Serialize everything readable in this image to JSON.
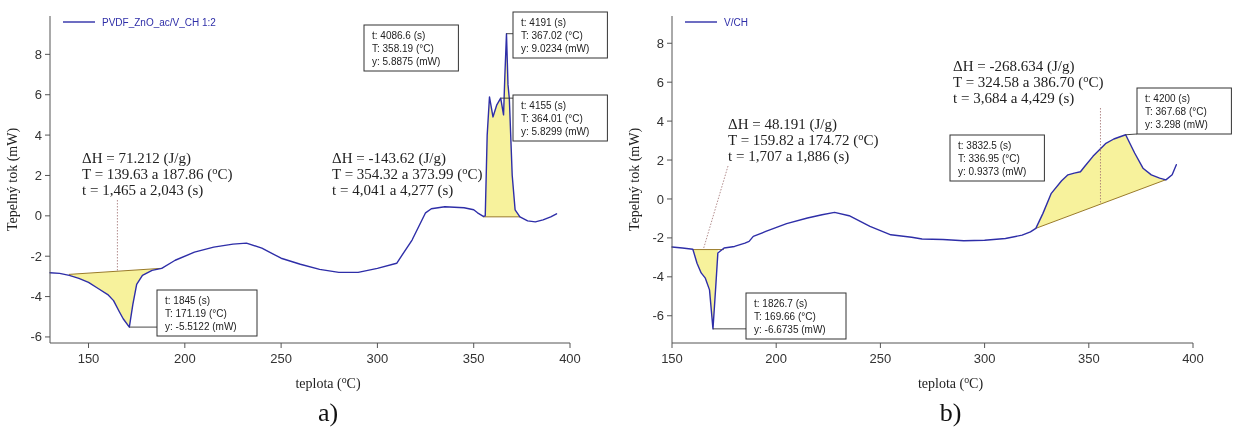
{
  "chart_data": [
    {
      "type": "line",
      "title": "a)",
      "xlabel": "teplota ($^{o}$C)",
      "ylabel": "Tepelný tok (mW)",
      "xlim": [
        130,
        400
      ],
      "xticks": [
        150,
        200,
        250,
        300,
        350,
        400
      ],
      "ylim": [
        -6.3,
        9.9
      ],
      "yticks": [
        -6,
        -4,
        -2,
        0,
        2,
        4,
        6,
        8
      ],
      "legend": "top left",
      "series": [
        {
          "color": "#9a7b2a",
          "x": [
            140,
            188
          ],
          "values": [
            -2.9,
            -2.6
          ]
        },
        {
          "color": "#9a7b2a",
          "x": [
            355,
            374
          ],
          "values": [
            -0.05,
            -0.05
          ]
        },
        {
          "name": "PVDF_ZnO_ac/V_CH 1:2",
          "color": "#2e2ea8",
          "x": [
            130,
            135,
            140,
            145,
            150,
            155,
            160,
            163,
            166,
            168,
            171.19,
            173,
            175,
            178,
            183,
            188,
            195,
            205,
            215,
            225,
            232,
            240,
            250,
            260,
            270,
            280,
            290,
            300,
            310,
            318,
            325,
            328,
            335,
            345,
            350,
            352,
            355,
            356,
            357,
            358.19,
            360,
            362,
            364.01,
            365.5,
            366.2,
            367.02,
            367.8,
            368.5,
            370,
            371.5,
            374,
            378,
            382,
            386,
            390,
            393
          ],
          "values": [
            -2.82,
            -2.85,
            -2.95,
            -3.1,
            -3.3,
            -3.6,
            -3.9,
            -4.2,
            -4.75,
            -5.1,
            -5.5122,
            -4.4,
            -3.4,
            -2.95,
            -2.7,
            -2.6,
            -2.2,
            -1.8,
            -1.55,
            -1.4,
            -1.35,
            -1.6,
            -2.1,
            -2.4,
            -2.65,
            -2.8,
            -2.8,
            -2.6,
            -2.35,
            -1.2,
            0.15,
            0.35,
            0.45,
            0.4,
            0.3,
            0.15,
            -0.03,
            0,
            4,
            5.8875,
            4.9,
            5.5,
            5.8299,
            5,
            7,
            9.0234,
            6.5,
            5.8,
            2,
            0.3,
            -0.05,
            -0.25,
            -0.3,
            -0.2,
            -0.05,
            0.1
          ],
          "lower": [
            null,
            null,
            -2.95,
            -3.1,
            -3.3,
            -3.6,
            -3.9,
            -4.2,
            -4.75,
            -5.1,
            -5.5122,
            -4.4,
            -3.4,
            -2.95,
            -2.7,
            -2.6,
            null,
            null,
            null,
            null,
            null,
            null,
            null,
            null,
            null,
            null,
            null,
            null,
            null,
            null,
            null,
            null,
            null,
            null,
            null,
            null,
            -0.05,
            -0.05,
            -0.05,
            -0.05,
            -0.05,
            -0.05,
            -0.05,
            -0.05,
            -0.05,
            -0.05,
            -0.05,
            -0.05,
            -0.05,
            -0.05,
            -0.05,
            null,
            null,
            null,
            null,
            null
          ],
          "upper": [
            null,
            null,
            -2.9,
            -2.87,
            -2.84,
            -2.81,
            -2.78,
            -2.76,
            -2.74,
            -2.73,
            -2.71,
            -2.69,
            -2.68,
            -2.66,
            -2.63,
            -2.6,
            null,
            null,
            null,
            null,
            null,
            null,
            null,
            null,
            null,
            null,
            null,
            null,
            null,
            null,
            null,
            null,
            null,
            null,
            null,
            null,
            -0.03,
            0,
            4,
            5.8875,
            4.9,
            5.5,
            5.8299,
            5,
            7,
            9.0234,
            6.5,
            5.8,
            2,
            0.3,
            -0.05,
            null,
            null,
            null,
            null,
            null
          ]
        }
      ],
      "annotations": [
        {
          "text": "ΔH = 71.212 (J/g)\nT = 139.63 a 187.86 ($^{o}$C)\nt = 1,465 a 2,043 (s)",
          "x": 165,
          "y": -2.75
        },
        {
          "text": "t: 1845 (s)\nT: 171.19 (°C)\ny: -5.5122 (mW)",
          "x": 171.19,
          "y": -5.5122
        },
        "ΔH = -143.62 (J/g)\nT = 354.32 a 373.99 ($^{o}$C)\nt = 4,041 a 4,277 (s)",
        "t: 4086.6 (s)\nT: 358.19 (°C)\ny: 5.8875 (mW)",
        {
          "text": "t: 4191 (s)\nT: 367.02 (°C)\ny: 9.0234 (mW)",
          "x": 367.02,
          "y": 9.0234
        },
        {
          "text": "t: 4155 (s)\nT: 364.01 (°C)\ny: 5.8299 (mW)",
          "x": 364.01,
          "y": 5.8299
        }
      ]
    },
    {
      "type": "line",
      "title": "b)",
      "xlabel": "teplota ($^{o}$C)",
      "ylabel": "Tepelný tok (mW)",
      "xlim": [
        150,
        400
      ],
      "xticks": [
        150,
        200,
        250,
        300,
        350,
        400
      ],
      "ylim": [
        -7.4,
        9.4
      ],
      "yticks": [
        -6,
        -4,
        -2,
        0,
        2,
        4,
        6,
        8
      ],
      "legend": "top left",
      "series": [
        {
          "color": "#9a7b2a",
          "x": [
            160,
            174.72
          ],
          "values": [
            -2.6,
            -2.6
          ]
        },
        {
          "color": "#9a7b2a",
          "x": [
            324.58,
            387
          ],
          "values": [
            -1.51,
            0.99
          ]
        },
        {
          "name": "V/CH",
          "color": "#2e2ea8",
          "x": [
            150,
            155,
            160,
            162,
            164,
            166,
            168,
            169.66,
            171,
            172,
            175,
            180,
            185,
            187,
            189,
            195,
            205,
            215,
            222,
            228,
            235,
            245,
            255,
            265,
            270,
            280,
            290,
            300,
            310,
            318,
            322,
            324.58,
            328,
            332,
            336.95,
            340,
            343,
            346,
            348,
            352,
            358,
            362,
            367.68,
            372,
            376,
            380,
            384,
            387,
            390,
            392
          ],
          "values": [
            -2.47,
            -2.52,
            -2.58,
            -3.3,
            -3.8,
            -4.07,
            -4.67,
            -6.6735,
            -4.5,
            -2.78,
            -2.52,
            -2.44,
            -2.27,
            -2.18,
            -1.92,
            -1.67,
            -1.27,
            -0.98,
            -0.81,
            -0.69,
            -0.86,
            -1.41,
            -1.84,
            -1.97,
            -2.06,
            -2.08,
            -2.15,
            -2.12,
            -2.03,
            -1.86,
            -1.69,
            -1.51,
            -0.74,
            0.29,
            0.9373,
            1.24,
            1.33,
            1.4,
            1.67,
            2.19,
            2.84,
            3.08,
            3.298,
            2.36,
            1.58,
            1.24,
            1.07,
            0.98,
            1.24,
            1.76
          ],
          "lower": [
            null,
            null,
            -2.6,
            -3.3,
            -3.8,
            -4.07,
            -4.67,
            -6.6735,
            -4.5,
            -2.78,
            null,
            null,
            null,
            null,
            null,
            null,
            null,
            null,
            null,
            null,
            null,
            null,
            null,
            null,
            null,
            null,
            null,
            null,
            null,
            null,
            null,
            -1.51,
            -1.37,
            -1.21,
            -1.01,
            -0.89,
            -0.77,
            -0.65,
            -0.57,
            -0.41,
            -0.17,
            -0.01,
            0.22,
            0.39,
            0.55,
            0.71,
            0.87,
            0.99,
            null,
            null
          ],
          "upper": [
            null,
            null,
            -2.58,
            -2.6,
            -2.6,
            -2.6,
            -2.6,
            -2.6,
            -2.6,
            -2.6,
            null,
            null,
            null,
            null,
            null,
            null,
            null,
            null,
            null,
            null,
            null,
            null,
            null,
            null,
            null,
            null,
            null,
            null,
            null,
            null,
            null,
            -1.51,
            -0.74,
            0.29,
            0.9373,
            1.24,
            1.33,
            1.4,
            1.67,
            2.19,
            2.84,
            3.08,
            3.298,
            2.36,
            1.58,
            1.24,
            1.07,
            0.98,
            null,
            null
          ]
        }
      ],
      "annotations": [
        {
          "text": "ΔH = 48.191 (J/g)\nT = 159.82 a 174.72 ($^{o}$C)\nt = 1,707 a 1,886 (s)",
          "x": 165,
          "y": -2.6
        },
        {
          "text": "t: 1826.7 (s)\nT: 169.66 (°C)\ny: -6.6735 (mW)",
          "x": 169.66,
          "y": -6.6735
        },
        {
          "text": "ΔH = -268.634 (J/g)\nT = 324.58 a 386.70 ($^{o}$C)\nt = 3,684 a 4,429 (s)",
          "x": 355.6,
          "y": -0.2
        },
        "t: 3832.5 (s)\nT: 336.95 (°C)\ny: 0.9373 (mW)",
        {
          "text": "t: 4200 (s)\nT: 367.68 (°C)\ny: 3.298 (mW)",
          "x": 367.68,
          "y": 3.298
        }
      ]
    }
  ]
}
